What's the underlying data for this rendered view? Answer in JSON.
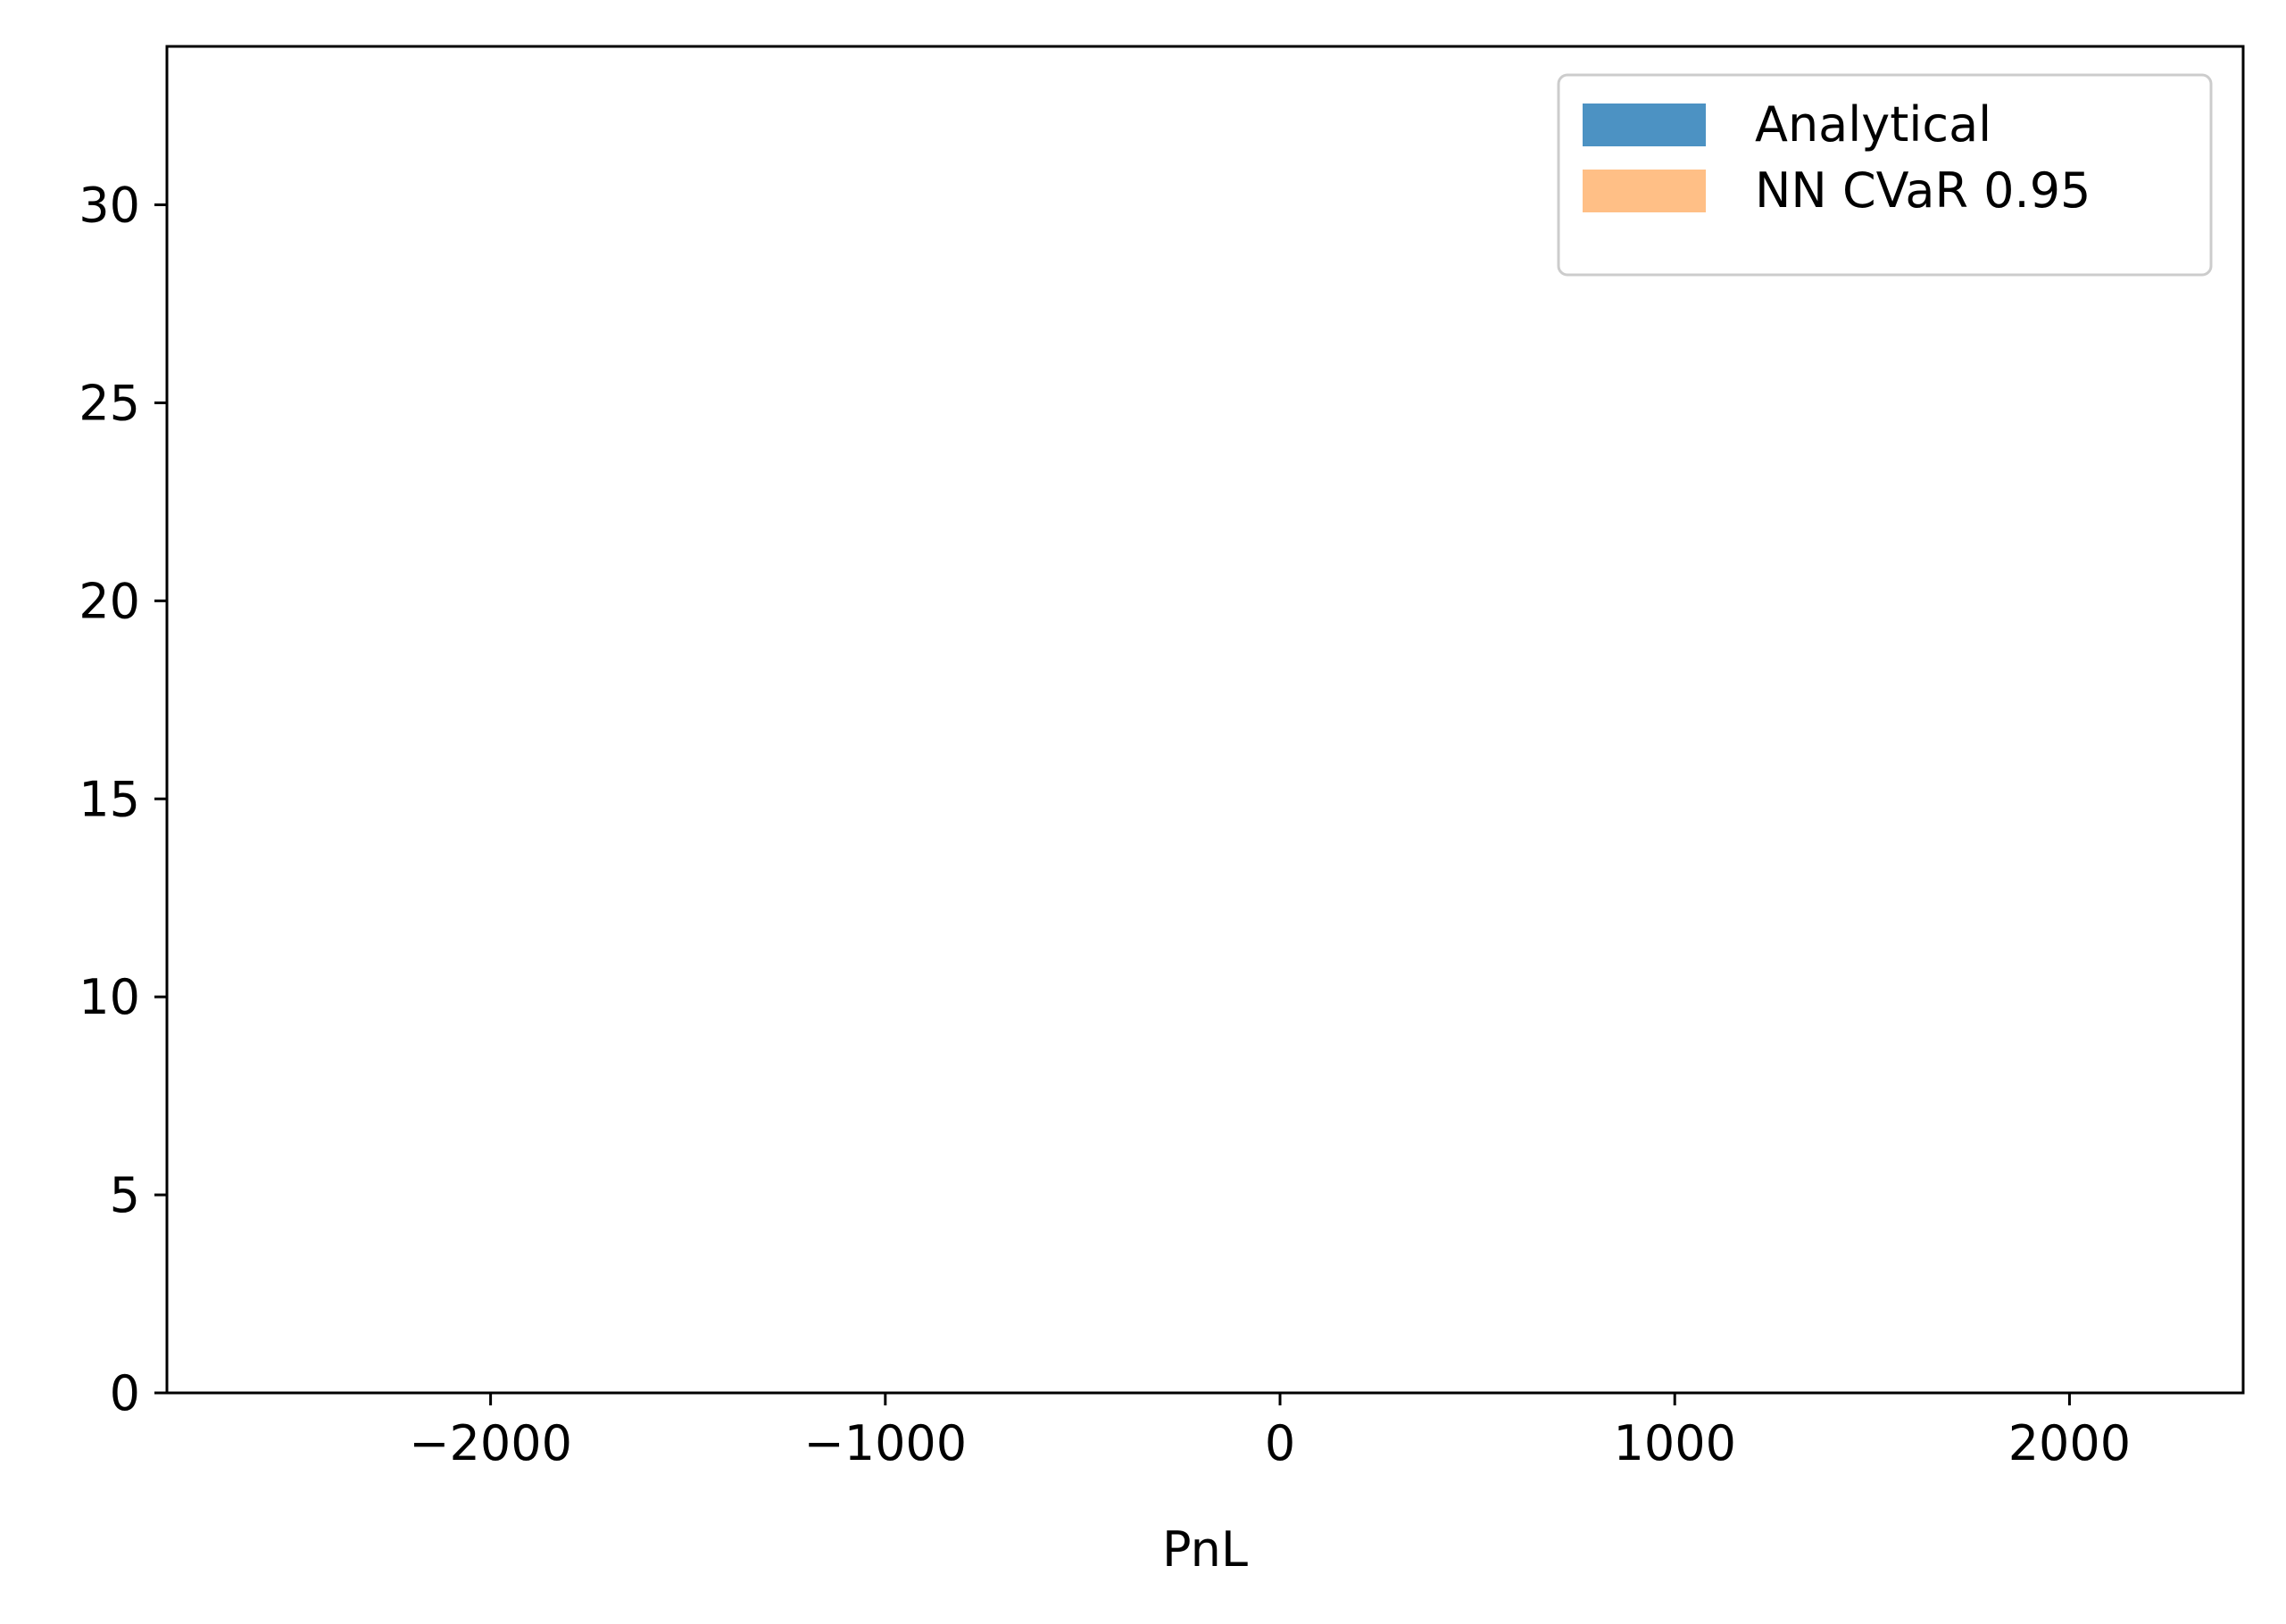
{
  "chart_data": {
    "type": "histogram",
    "xlabel": "PnL",
    "ylabel": "",
    "xlim": [
      -2820,
      2440
    ],
    "ylim": [
      0,
      34
    ],
    "xticks": [
      -2000,
      -1000,
      0,
      1000,
      2000
    ],
    "xtick_labels": [
      "−2000",
      "−1000",
      "0",
      "1000",
      "2000"
    ],
    "yticks": [
      0,
      5,
      10,
      15,
      20,
      25,
      30
    ],
    "ytick_labels": [
      "0",
      "5",
      "10",
      "15",
      "20",
      "25",
      "30"
    ],
    "grid": false,
    "legend_position": "upper right",
    "series": [
      {
        "name": "Analytical",
        "color": "#1f77b4",
        "opacity": 0.8,
        "bins": []
      },
      {
        "name": "NN CVaR 0.95",
        "color": "#ff7f0e",
        "opacity": 0.5,
        "bins": []
      }
    ]
  }
}
